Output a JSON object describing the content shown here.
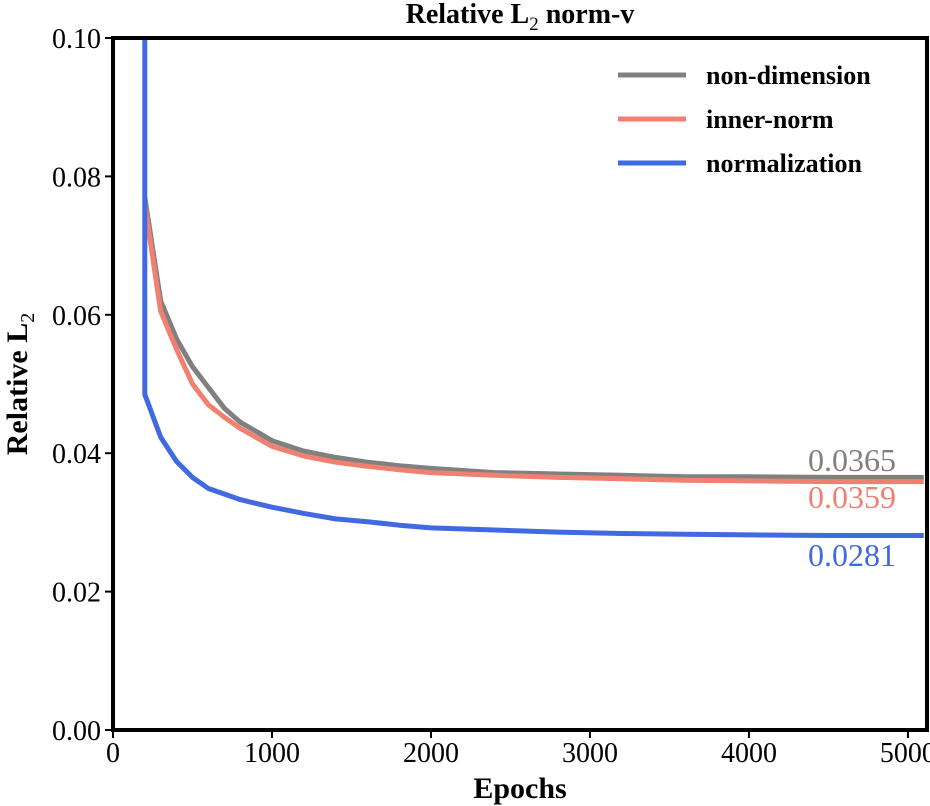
{
  "chart_data": {
    "type": "line",
    "title": "Relative L",
    "title_sub": "2",
    "title_suffix": " norm-v",
    "xlabel": "Epochs",
    "ylabel": "Relative L",
    "ylabel_sub": "2",
    "xlim": [
      0,
      5120
    ],
    "ylim": [
      0,
      0.1
    ],
    "xticks": [
      0,
      1000,
      2000,
      3000,
      4000,
      5000
    ],
    "xtick_labels": [
      "0",
      "1000",
      "2000",
      "3000",
      "4000",
      "5000"
    ],
    "yticks": [
      0,
      0.02,
      0.04,
      0.06,
      0.08,
      0.1
    ],
    "ytick_labels": [
      "0.00",
      "0.02",
      "0.04",
      "0.06",
      "0.08",
      "0.10"
    ],
    "legend_position": "top-right",
    "x": [
      200,
      300,
      400,
      500,
      600,
      700,
      800,
      1000,
      1200,
      1400,
      1600,
      1800,
      2000,
      2400,
      2800,
      3200,
      3600,
      4000,
      4500,
      5100
    ],
    "series": [
      {
        "name": "non-dimension",
        "color": "#808080",
        "values": [
          0.077,
          0.062,
          0.0565,
          0.0525,
          0.0495,
          0.0465,
          0.0445,
          0.0418,
          0.0403,
          0.0394,
          0.0387,
          0.0382,
          0.0378,
          0.0372,
          0.037,
          0.0368,
          0.0366,
          0.0366,
          0.0365,
          0.0365
        ],
        "final_label": "0.0365"
      },
      {
        "name": "inner-norm",
        "color": "#F08070",
        "values": [
          0.076,
          0.0605,
          0.055,
          0.05,
          0.047,
          0.0452,
          0.0436,
          0.041,
          0.0396,
          0.0387,
          0.0381,
          0.0376,
          0.0372,
          0.0368,
          0.0365,
          0.0363,
          0.0361,
          0.036,
          0.0359,
          0.0359
        ],
        "final_label": "0.0359"
      },
      {
        "name": "normalization",
        "color": "#4169E1",
        "spike_start": 0.1,
        "values": [
          0.0485,
          0.0423,
          0.0388,
          0.0365,
          0.0349,
          0.0341,
          0.0333,
          0.0322,
          0.0313,
          0.0305,
          0.0301,
          0.0296,
          0.0292,
          0.0289,
          0.0286,
          0.0284,
          0.0283,
          0.0282,
          0.0281,
          0.0281
        ],
        "final_label": "0.0281"
      }
    ]
  }
}
